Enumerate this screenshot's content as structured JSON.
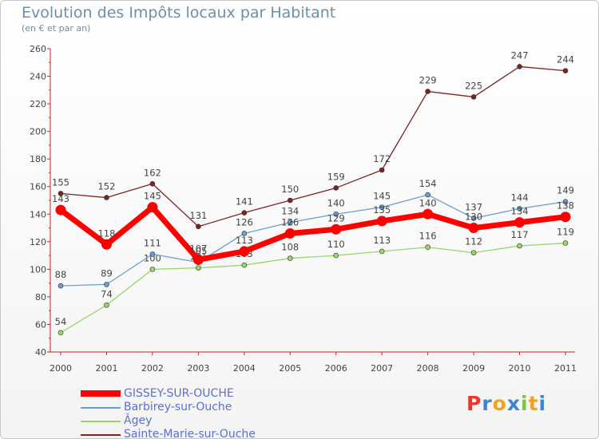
{
  "chart_data": {
    "type": "line",
    "title": "Evolution des Impôts locaux par Habitant",
    "subtitle": "(en € et par an)",
    "xlabel": "",
    "ylabel": "",
    "categories": [
      "2000",
      "2001",
      "2002",
      "2003",
      "2004",
      "2005",
      "2006",
      "2007",
      "2008",
      "2009",
      "2010",
      "2011"
    ],
    "ylim": [
      40,
      260
    ],
    "yticks": [
      40,
      60,
      80,
      100,
      120,
      140,
      160,
      180,
      200,
      220,
      240,
      260
    ],
    "grid": false,
    "legend_position": "bottom-left",
    "series": [
      {
        "name": "Sainte-Marie-sur-Ouche",
        "color": "#7a2424",
        "values": [
          155,
          152,
          162,
          131,
          141,
          150,
          159,
          172,
          229,
          225,
          247,
          244
        ]
      },
      {
        "name": "Âgey",
        "color": "#9ad46a",
        "values": [
          54,
          74,
          100,
          101,
          103,
          108,
          110,
          113,
          116,
          112,
          117,
          119
        ]
      },
      {
        "name": "Barbirey-sur-Ouche",
        "color": "#6b9ed0",
        "values": [
          88,
          89,
          111,
          105,
          126,
          134,
          140,
          145,
          154,
          137,
          144,
          149
        ]
      },
      {
        "name": "GISSEY-SUR-OUCHE",
        "color": "#ff0000",
        "values": [
          143,
          118,
          145,
          107,
          113,
          126,
          129,
          135,
          140,
          130,
          134,
          138
        ]
      }
    ],
    "legend_order": [
      "GISSEY-SUR-OUCHE",
      "Barbirey-sur-Ouche",
      "Âgey",
      "Sainte-Marie-sur-Ouche"
    ]
  },
  "brand": {
    "letters": [
      "P",
      "r",
      "o",
      "x",
      "i",
      "t",
      "i"
    ],
    "colors": [
      "#e8382e",
      "#3a86d4",
      "#f2a31b",
      "#3a86d4",
      "#7dc242",
      "#f2a31b",
      "#3a86d4"
    ]
  }
}
